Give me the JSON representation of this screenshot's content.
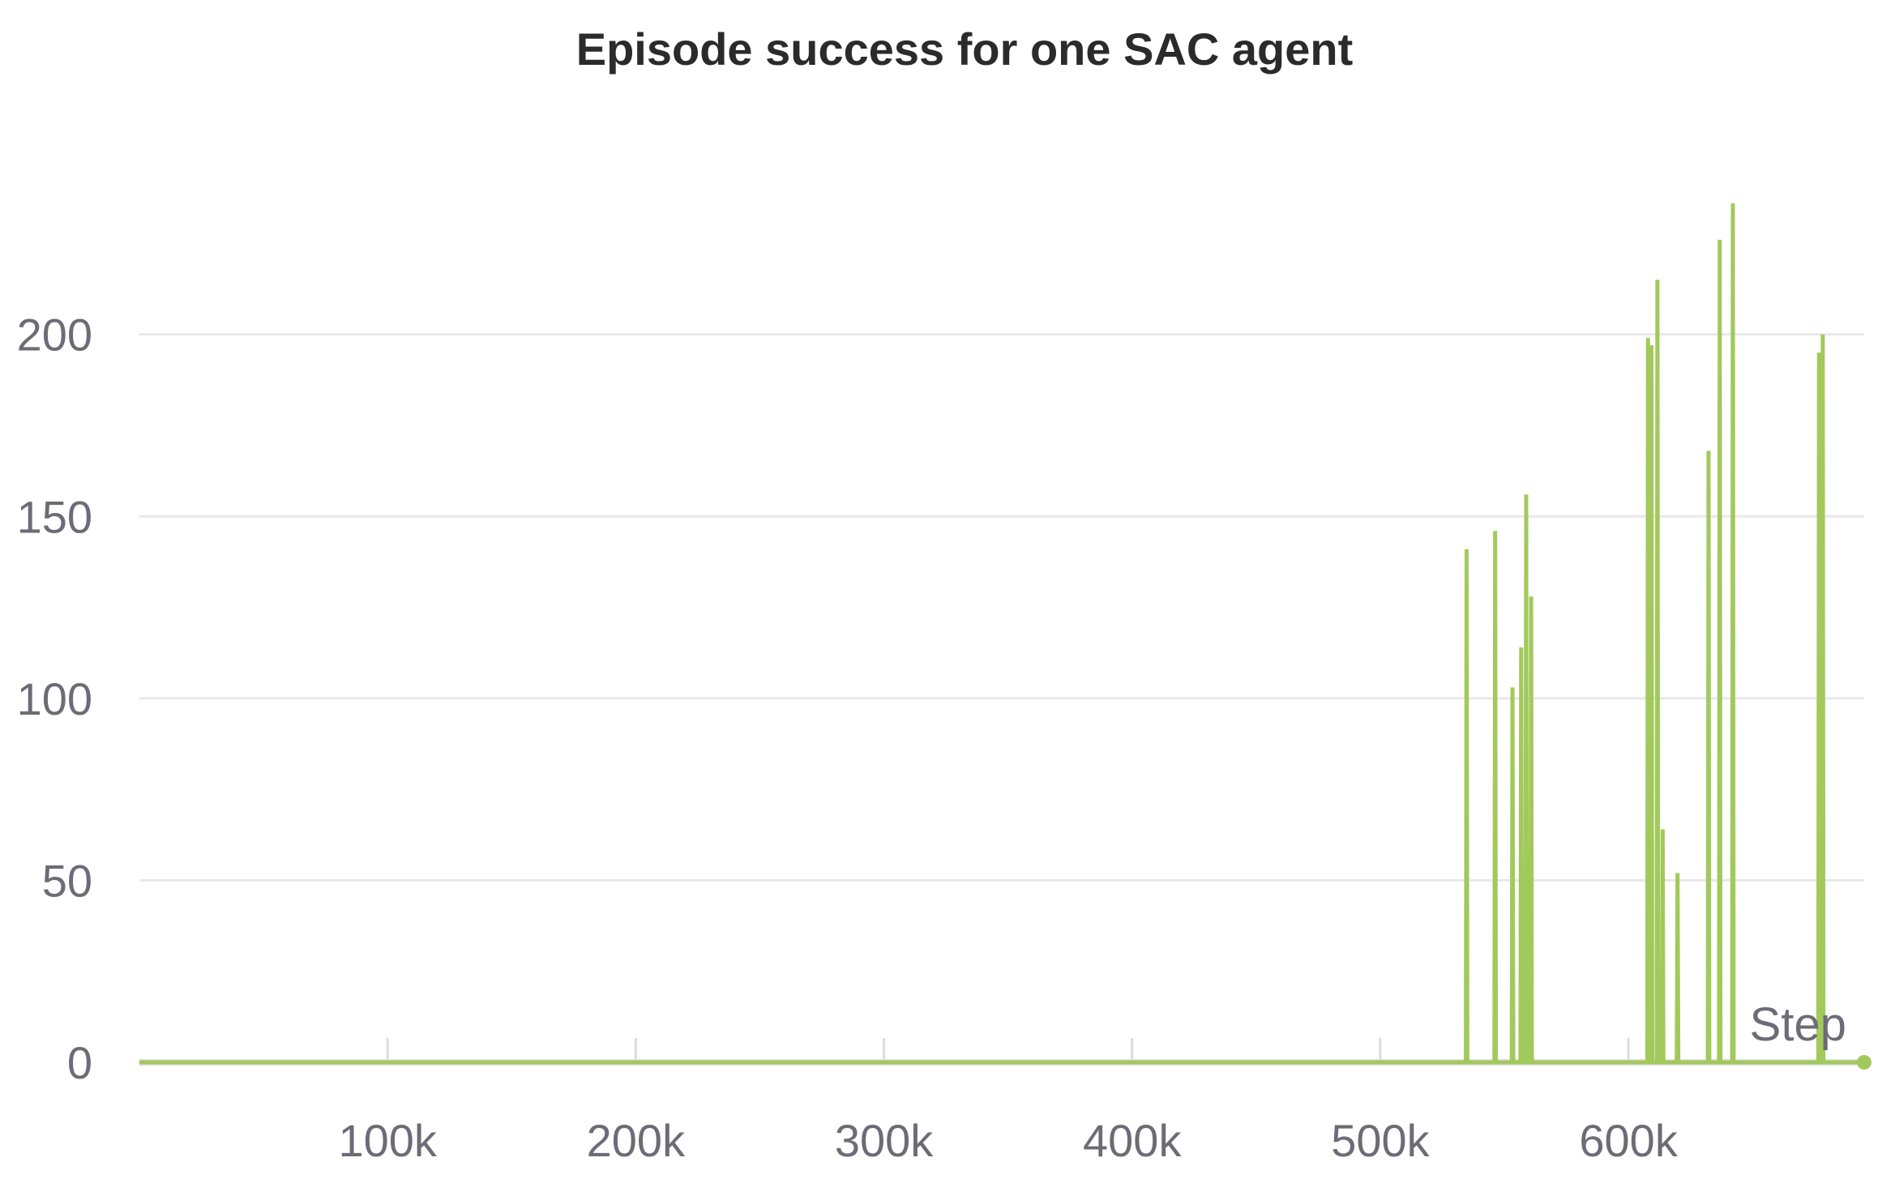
{
  "chart_data": {
    "type": "line",
    "title": "Episode success for one SAC agent",
    "xlabel": "Step",
    "ylabel": "",
    "xlim": [
      0,
      695000
    ],
    "ylim": [
      0,
      240
    ],
    "x_ticks": [
      100000,
      200000,
      300000,
      400000,
      500000,
      600000
    ],
    "x_tick_labels": [
      "100k",
      "200k",
      "300k",
      "400k",
      "500k",
      "600k"
    ],
    "y_ticks": [
      0,
      50,
      100,
      150,
      200
    ],
    "y_tick_labels": [
      "0",
      "50",
      "100",
      "150",
      "200"
    ],
    "grid": true,
    "colors": {
      "series": "#a2c95c",
      "grid": "#e8e8ea",
      "zero_line": "#e0e0e2",
      "tick": "#dcdcde",
      "label": "#6d6b75",
      "title": "#2b2b2b"
    },
    "series": [
      {
        "points": [
          [
            0,
            0
          ],
          [
            534500,
            0
          ],
          [
            534800,
            141
          ],
          [
            535100,
            0
          ],
          [
            546000,
            0
          ],
          [
            546300,
            146
          ],
          [
            546600,
            0
          ],
          [
            553000,
            0
          ],
          [
            553300,
            103
          ],
          [
            553600,
            0
          ],
          [
            556500,
            0
          ],
          [
            556800,
            114
          ],
          [
            557100,
            0
          ],
          [
            558500,
            0
          ],
          [
            558800,
            156
          ],
          [
            559100,
            0
          ],
          [
            560500,
            0
          ],
          [
            560800,
            128
          ],
          [
            561100,
            0
          ],
          [
            607600,
            0
          ],
          [
            607900,
            199
          ],
          [
            608100,
            0
          ],
          [
            609000,
            0
          ],
          [
            609300,
            197
          ],
          [
            609600,
            0
          ],
          [
            611400,
            0
          ],
          [
            611700,
            215
          ],
          [
            612000,
            0
          ],
          [
            613500,
            0
          ],
          [
            613800,
            64
          ],
          [
            614100,
            0
          ],
          [
            619500,
            0
          ],
          [
            619800,
            52
          ],
          [
            620100,
            0
          ],
          [
            632000,
            0
          ],
          [
            632300,
            168
          ],
          [
            632600,
            0
          ],
          [
            636500,
            0
          ],
          [
            636800,
            226
          ],
          [
            637100,
            0
          ],
          [
            641800,
            0
          ],
          [
            642100,
            236
          ],
          [
            642400,
            0
          ],
          [
            676500,
            0
          ],
          [
            676800,
            195
          ],
          [
            677100,
            0
          ],
          [
            678000,
            0
          ],
          [
            678300,
            200
          ],
          [
            678600,
            0
          ],
          [
            680000,
            0
          ],
          [
            695000,
            0
          ]
        ]
      }
    ]
  }
}
